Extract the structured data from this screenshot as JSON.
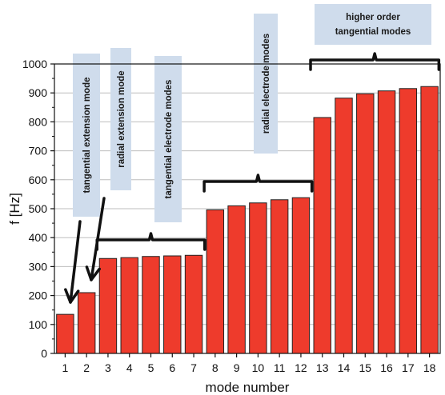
{
  "chart_data": {
    "type": "bar",
    "xlabel": "mode number",
    "ylabel": "f [Hz]",
    "ylim": [
      0,
      1000
    ],
    "yticks": [
      0,
      100,
      200,
      300,
      400,
      500,
      600,
      700,
      800,
      900,
      1000
    ],
    "grid": "horizontal",
    "bar_color": "#ee3b2c",
    "categories": [
      "1",
      "2",
      "3",
      "4",
      "5",
      "6",
      "7",
      "8",
      "9",
      "10",
      "11",
      "12",
      "13",
      "14",
      "15",
      "16",
      "17",
      "18"
    ],
    "values": [
      135,
      210,
      328,
      331,
      335,
      337,
      339,
      496,
      510,
      520,
      531,
      538,
      815,
      882,
      897,
      907,
      915,
      922
    ],
    "annotations": [
      {
        "id": "tangential-extension",
        "text": "tangential extension mode",
        "mode_start": 1,
        "mode_end": 1
      },
      {
        "id": "radial-extension",
        "text": "radial extension mode",
        "mode_start": 2,
        "mode_end": 2
      },
      {
        "id": "tangential-electrode",
        "text": "tangential electrode modes",
        "mode_start": 3,
        "mode_end": 7
      },
      {
        "id": "radial-electrode",
        "text": "radial electrode modes",
        "mode_start": 8,
        "mode_end": 12
      },
      {
        "id": "higher-order",
        "text_lines": [
          "higher order",
          "tangential modes"
        ],
        "mode_start": 13,
        "mode_end": 18
      }
    ],
    "label_box_color": "#cfdcec"
  }
}
